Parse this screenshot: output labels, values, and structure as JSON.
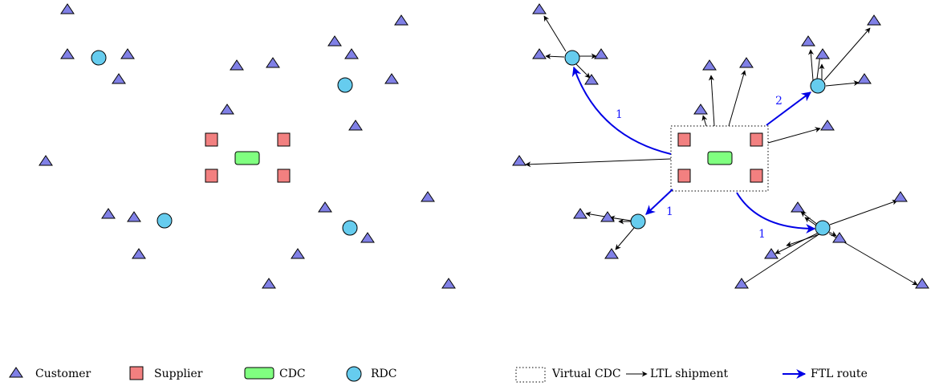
{
  "legend": {
    "customer": "Customer",
    "supplier": "Supplier",
    "cdc": "CDC",
    "rdc": "RDC",
    "virtual_cdc": "Virtual CDC",
    "ltl": "LTL shipment",
    "ftl": "FTL route"
  },
  "flows": {
    "to_top_left": "1",
    "to_top_right": "2",
    "to_bottom_left": "1",
    "to_bottom_right": "1"
  },
  "colors": {
    "customer": "#8080e6",
    "supplier": "#f28080",
    "cdc": "#80ff80",
    "rdc": "#66ccee",
    "ftl": "#0000e6"
  }
}
